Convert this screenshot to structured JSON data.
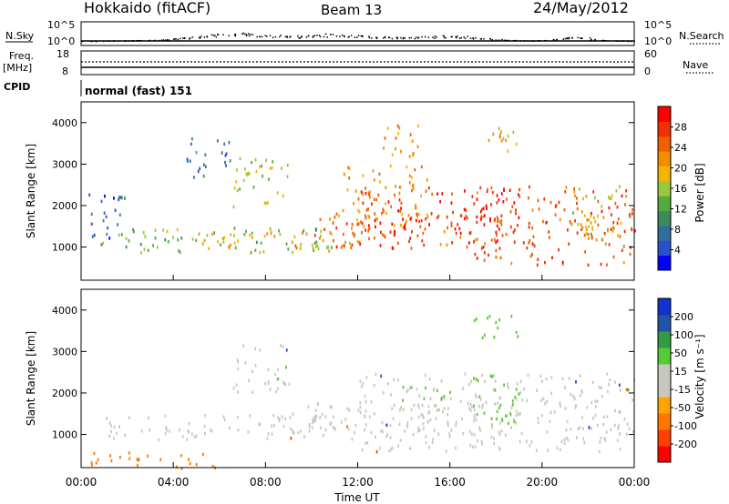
{
  "header": {
    "station": "Hokkaido (fitACF)",
    "beam": "Beam 13",
    "date": "24/May/2012"
  },
  "noise_panel": {
    "left_label": "N.Sky",
    "left_top_tick": "10^5",
    "left_bottom_tick": "10^0",
    "right_label": "N.Search",
    "right_top_tick": "10^5",
    "right_bottom_tick": "10^0",
    "sky_samples": [
      0.02,
      0.02,
      0.03,
      0.03,
      0.04,
      0.05,
      0.07,
      0.1,
      0.14,
      0.2,
      0.26,
      0.32,
      0.36,
      0.38,
      0.4,
      0.37,
      0.34,
      0.3,
      0.28,
      0.27,
      0.3,
      0.33,
      0.35,
      0.34,
      0.3,
      0.28,
      0.26,
      0.24,
      0.22,
      0.2,
      0.22,
      0.25,
      0.28,
      0.27,
      0.24,
      0.2,
      0.14,
      0.1,
      0.07,
      0.05,
      0.04,
      0.05,
      0.1,
      0.18,
      0.24,
      0.2,
      0.1,
      0.05,
      0.03,
      0.02
    ]
  },
  "freq_panel": {
    "left_label": "Freq.",
    "left_unit": "[MHz]",
    "left_top_tick": "18",
    "left_bottom_tick": "8",
    "right_label": "Nave",
    "right_top_tick": "60",
    "right_bottom_tick": "0"
  },
  "cpid_panel": {
    "label": "CPID",
    "value": "normal (fast) 151"
  },
  "colors": {
    "power": [
      "#0000ff",
      "#2a4fd0",
      "#2f6fa0",
      "#3a8c5a",
      "#55aa3f",
      "#9ac83a",
      "#f4b400",
      "#f09000",
      "#f06000",
      "#f03000",
      "#ff0000"
    ],
    "velocity": [
      "#ff0000",
      "#ff4000",
      "#ff7700",
      "#ffa500",
      "#c8c8c0",
      "#c8c8c0",
      "#55cc33",
      "#339944",
      "#2255aa",
      "#1133cc"
    ]
  },
  "chart_data": [
    {
      "type": "heatmap",
      "panel": "power",
      "ylabel": "Slant Range [km]",
      "ylim": [
        200,
        4500
      ],
      "yticks": [
        "1000",
        "2000",
        "3000",
        "4000"
      ],
      "colorbar_label": "Power [dB]",
      "colorbar_ticks": [
        "4",
        "8",
        "12",
        "16",
        "20",
        "24",
        "28"
      ],
      "color_range": [
        0,
        32
      ],
      "echo_bands": [
        {
          "t0": 0.5,
          "t1": 11,
          "r0": 900,
          "r1": 1500,
          "level": 14
        },
        {
          "t0": 5,
          "t1": 12,
          "r0": 900,
          "r1": 1400,
          "level": 20
        },
        {
          "t0": 9,
          "t1": 18,
          "r0": 1000,
          "r1": 1800,
          "level": 26
        },
        {
          "t0": 12,
          "t1": 19,
          "r0": 1300,
          "r1": 2500,
          "level": 28
        },
        {
          "t0": 17,
          "t1": 24,
          "r0": 600,
          "r1": 2500,
          "level": 26
        },
        {
          "t0": 6.5,
          "t1": 9,
          "r0": 2000,
          "r1": 3200,
          "level": 16
        },
        {
          "t0": 11,
          "t1": 15,
          "r0": 1500,
          "r1": 3000,
          "level": 22
        },
        {
          "t0": 13,
          "t1": 15,
          "r0": 3200,
          "r1": 4000,
          "level": 22
        },
        {
          "t0": 17,
          "t1": 19,
          "r0": 3300,
          "r1": 3900,
          "level": 20
        },
        {
          "t0": 4.5,
          "t1": 6.5,
          "r0": 2700,
          "r1": 3700,
          "level": 8
        },
        {
          "t0": 0.3,
          "t1": 2,
          "r0": 1200,
          "r1": 2300,
          "level": 6
        },
        {
          "t0": 21,
          "t1": 23.5,
          "r0": 1200,
          "r1": 2500,
          "level": 18
        }
      ]
    },
    {
      "type": "heatmap",
      "panel": "velocity",
      "xlabel": "Time UT",
      "ylabel": "Slant Range [km]",
      "ylim": [
        200,
        4500
      ],
      "yticks": [
        "1000",
        "2000",
        "3000",
        "4000"
      ],
      "xticks": [
        "00:00",
        "04:00",
        "08:00",
        "12:00",
        "16:00",
        "20:00",
        "00:00"
      ],
      "xlim": [
        0,
        24
      ],
      "colorbar_label": "Velocity [m s⁻¹]",
      "colorbar_ticks": [
        "200",
        "100",
        "50",
        "15",
        "-15",
        "-50",
        "-100",
        "-200"
      ],
      "echo_bands": [
        {
          "t0": 0.5,
          "t1": 12,
          "r0": 900,
          "r1": 1500,
          "level": 0
        },
        {
          "t0": 9,
          "t1": 18,
          "r0": 1000,
          "r1": 1800,
          "level": 0
        },
        {
          "t0": 12,
          "t1": 24,
          "r0": 600,
          "r1": 2500,
          "level": 0
        },
        {
          "t0": 6.5,
          "t1": 9,
          "r0": 2000,
          "r1": 3200,
          "level": 0
        },
        {
          "t0": 13.5,
          "t1": 16,
          "r0": 1800,
          "r1": 2200,
          "level": 30
        },
        {
          "t0": 17,
          "t1": 19,
          "r0": 1300,
          "r1": 2500,
          "level": 30
        },
        {
          "t0": 17,
          "t1": 19,
          "r0": 3300,
          "r1": 3900,
          "level": 30
        },
        {
          "t0": 0.3,
          "t1": 6,
          "r0": 200,
          "r1": 600,
          "level": -60
        }
      ]
    }
  ]
}
